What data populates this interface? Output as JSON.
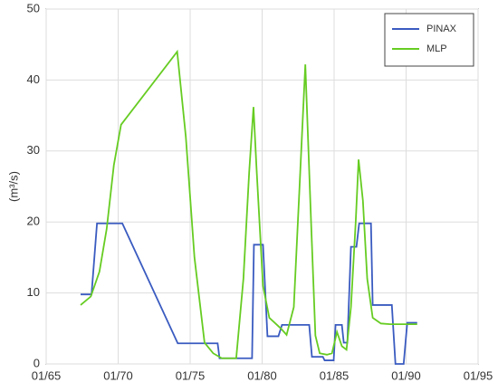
{
  "chart_data": {
    "type": "line",
    "y_label": "(m³/s)",
    "xlim": [
      1965,
      1995
    ],
    "xticks": [
      {
        "value": 1965,
        "label": "01/65"
      },
      {
        "value": 1970,
        "label": "01/70"
      },
      {
        "value": 1975,
        "label": "01/75"
      },
      {
        "value": 1980,
        "label": "01/80"
      },
      {
        "value": 1985,
        "label": "01/85"
      },
      {
        "value": 1990,
        "label": "01/90"
      },
      {
        "value": 1995,
        "label": "01/95"
      }
    ],
    "ylim": [
      0,
      50
    ],
    "yticks": [
      0,
      10,
      20,
      30,
      40,
      50
    ],
    "grid": true,
    "legend": "upper right",
    "series": [
      {
        "name": "PINAX",
        "color": "#3a5bc0",
        "x": [
          1967.39,
          1968.15,
          1968.53,
          1970.29,
          1974.14,
          1976.91,
          1977.04,
          1979.3,
          1979.43,
          1980.06,
          1980.37,
          1981.13,
          1981.38,
          1983.27,
          1983.46,
          1984.22,
          1984.34,
          1984.97,
          1985.1,
          1985.54,
          1985.67,
          1985.92,
          1986.17,
          1986.55,
          1986.74,
          1987.56,
          1987.68,
          1989.01,
          1989.26,
          1989.83,
          1990.08,
          1990.77
        ],
        "values": [
          9.8,
          9.8,
          19.8,
          19.8,
          2.9,
          2.9,
          0.8,
          0.8,
          16.8,
          16.8,
          3.9,
          3.9,
          5.5,
          5.5,
          1.0,
          1.0,
          0.5,
          0.5,
          5.5,
          5.5,
          3.0,
          3.0,
          16.5,
          16.5,
          19.8,
          19.8,
          8.3,
          8.3,
          0,
          0,
          5.8,
          5.8
        ]
      },
      {
        "name": "MLP",
        "color": "#66cc22",
        "x": [
          1967.39,
          1968.1,
          1968.7,
          1969.2,
          1969.7,
          1970.2,
          1974.1,
          1974.7,
          1975.3,
          1976.0,
          1976.6,
          1977.2,
          1978.2,
          1978.7,
          1979.1,
          1979.4,
          1979.6,
          1980.06,
          1980.5,
          1981.3,
          1981.7,
          1982.2,
          1982.6,
          1983.0,
          1983.4,
          1983.7,
          1984.0,
          1984.5,
          1984.85,
          1985.2,
          1985.54,
          1985.86,
          1986.17,
          1986.5,
          1986.7,
          1987.0,
          1987.3,
          1987.68,
          1988.25,
          1988.9,
          1990.0,
          1990.77
        ],
        "values": [
          8.3,
          9.5,
          13,
          19,
          28,
          33.7,
          44,
          32,
          15,
          3,
          1.5,
          0.8,
          0.8,
          12,
          27,
          36.2,
          28,
          11,
          6.5,
          5,
          4.1,
          8,
          25,
          42.2,
          20,
          4,
          1.5,
          1.3,
          1.5,
          4.5,
          2.5,
          2,
          8,
          20,
          28.8,
          23,
          12,
          6.5,
          5.7,
          5.6,
          5.6,
          5.6
        ]
      }
    ]
  }
}
